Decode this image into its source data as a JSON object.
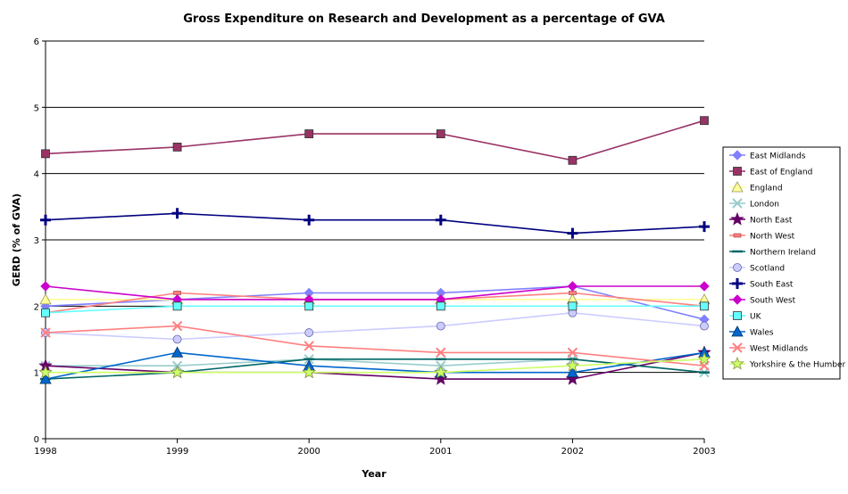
{
  "chart_data": {
    "type": "line",
    "title": "Gross Expenditure on Research and Development as a percentage of GVA",
    "xlabel": "Year",
    "ylabel": "GERD (% of GVA)",
    "x": [
      "1998",
      "1999",
      "2000",
      "2001",
      "2002",
      "2003"
    ],
    "y_ticks": [
      "0",
      "1",
      "2",
      "3",
      "4",
      "5",
      "6"
    ],
    "ylim": [
      0,
      6
    ],
    "grid": "horizontal",
    "legend_position": "right",
    "series": [
      {
        "name": "East Midlands",
        "values": [
          2.0,
          2.1,
          2.2,
          2.2,
          2.3,
          1.8
        ],
        "color": "#8080ff",
        "marker": "diamond"
      },
      {
        "name": "East of England",
        "values": [
          4.3,
          4.4,
          4.6,
          4.6,
          4.2,
          4.8
        ],
        "color": "#993366",
        "marker": "square"
      },
      {
        "name": "England",
        "values": [
          2.1,
          2.1,
          2.1,
          2.1,
          2.1,
          2.1
        ],
        "color": "#ffff99",
        "marker": "triangle"
      },
      {
        "name": "London",
        "values": [
          1.1,
          1.1,
          1.2,
          1.1,
          1.2,
          1.0
        ],
        "color": "#99cccc",
        "marker": "x"
      },
      {
        "name": "North East",
        "values": [
          1.1,
          1.0,
          1.0,
          0.9,
          0.9,
          1.3
        ],
        "color": "#660066",
        "marker": "star"
      },
      {
        "name": "North West",
        "values": [
          1.9,
          2.2,
          2.1,
          2.1,
          2.2,
          2.0
        ],
        "color": "#ff8080",
        "marker": "dash"
      },
      {
        "name": "Northern Ireland",
        "values": [
          0.9,
          1.0,
          1.2,
          1.2,
          1.2,
          1.0
        ],
        "color": "#006666",
        "marker": "line"
      },
      {
        "name": "Scotland",
        "values": [
          1.6,
          1.5,
          1.6,
          1.7,
          1.9,
          1.7
        ],
        "color": "#ccccff",
        "marker": "circle"
      },
      {
        "name": "South East",
        "values": [
          3.3,
          3.4,
          3.3,
          3.3,
          3.1,
          3.2
        ],
        "color": "#000080",
        "marker": "plus"
      },
      {
        "name": "South West",
        "values": [
          2.3,
          2.1,
          2.1,
          2.1,
          2.3,
          2.3
        ],
        "color": "#cc00cc",
        "marker": "diamond"
      },
      {
        "name": "UK",
        "values": [
          1.9,
          2.0,
          2.0,
          2.0,
          2.0,
          2.0
        ],
        "color": "#66ffff",
        "marker": "square"
      },
      {
        "name": "Wales",
        "values": [
          0.9,
          1.3,
          1.1,
          1.0,
          1.0,
          1.3
        ],
        "color": "#0066cc",
        "marker": "triangle"
      },
      {
        "name": "West Midlands",
        "values": [
          1.6,
          1.7,
          1.4,
          1.3,
          1.3,
          1.1
        ],
        "color": "#ff8080",
        "marker": "x"
      },
      {
        "name": "Yorkshire & the Humber",
        "values": [
          1.0,
          1.0,
          1.0,
          1.0,
          1.1,
          1.2
        ],
        "color": "#ccff66",
        "marker": "star"
      }
    ]
  }
}
